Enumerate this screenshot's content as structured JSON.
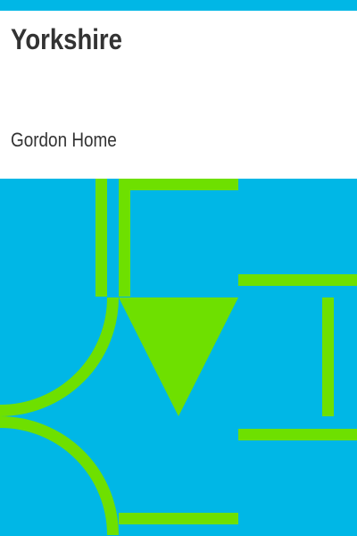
{
  "cover": {
    "title": "Yorkshire",
    "author": "Gordon Home"
  },
  "colors": {
    "background": "#00b7e6",
    "accent": "#6ee000",
    "panel": "#ffffff",
    "text": "#333333"
  }
}
